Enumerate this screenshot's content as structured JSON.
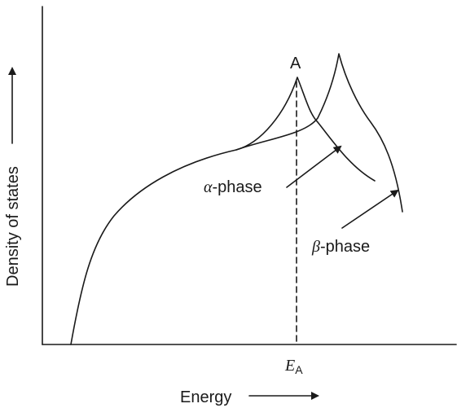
{
  "axes": {
    "x_label": "Energy",
    "y_label": "Density of states"
  },
  "peak_label": "A",
  "energy_marker": {
    "symbol": "E",
    "subscript": "A"
  },
  "curves": [
    {
      "name_symbol": "α",
      "name_suffix": "-phase"
    },
    {
      "name_symbol": "β",
      "name_suffix": "-phase"
    }
  ]
}
